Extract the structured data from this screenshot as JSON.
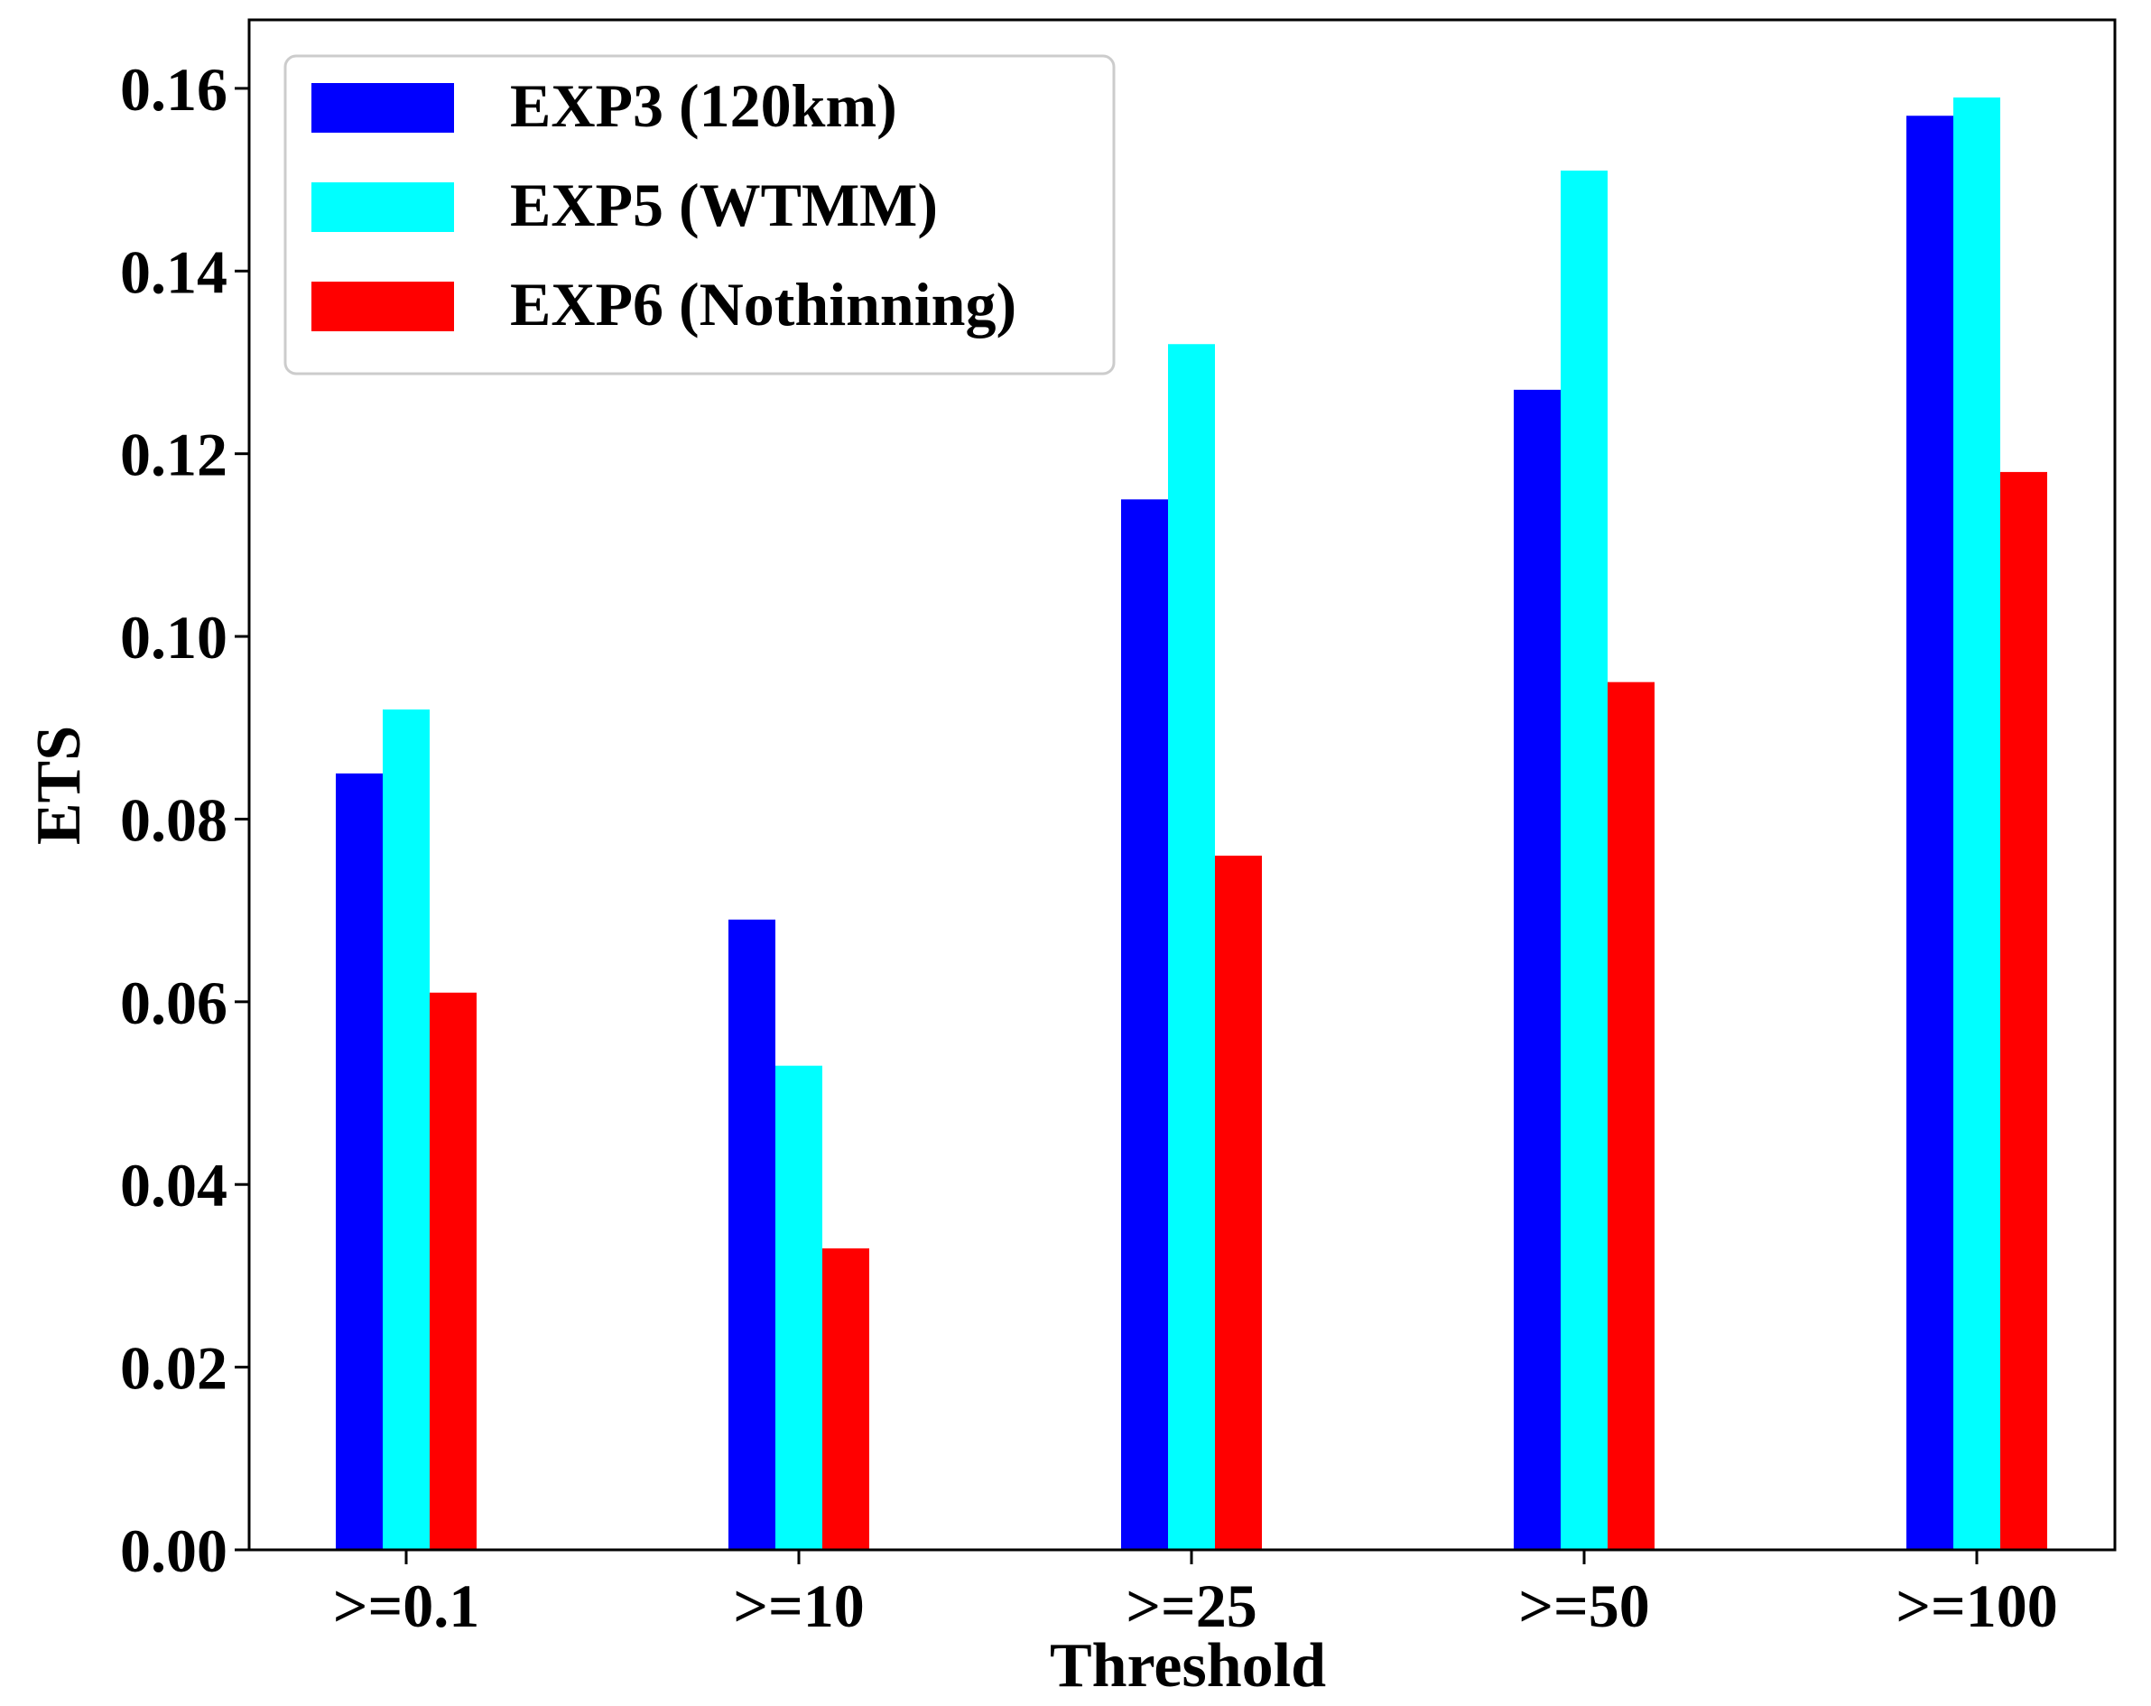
{
  "chart_data": {
    "type": "bar",
    "title": "",
    "xlabel": "Threshold",
    "ylabel": "ETS",
    "categories": [
      ">=0.1",
      ">=10",
      ">=25",
      ">=50",
      ">=100"
    ],
    "series": [
      {
        "name": "EXP3 (120km)",
        "color": "#0000ff",
        "values": [
          0.085,
          0.069,
          0.115,
          0.127,
          0.157
        ]
      },
      {
        "name": "EXP5 (WTMM)",
        "color": "#00ffff",
        "values": [
          0.092,
          0.053,
          0.132,
          0.151,
          0.159
        ]
      },
      {
        "name": "EXP6 (Nothinning)",
        "color": "#ff0000",
        "values": [
          0.061,
          0.033,
          0.076,
          0.095,
          0.118
        ]
      }
    ],
    "ylim": [
      0,
      0.1675
    ],
    "yticks": [
      "0.00",
      "0.02",
      "0.04",
      "0.06",
      "0.08",
      "0.10",
      "0.12",
      "0.14",
      "0.16"
    ],
    "grid": false,
    "legend_position": "top-left"
  }
}
